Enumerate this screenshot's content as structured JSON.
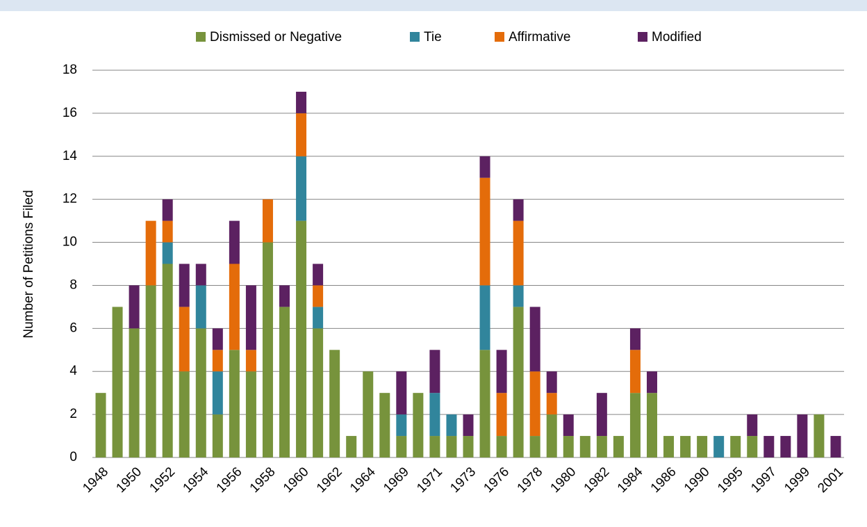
{
  "chart_data": {
    "type": "stacked_bar",
    "y_label": "Number of Petitions Filed",
    "categories": [
      "1948",
      null,
      "1950",
      null,
      "1952",
      null,
      "1954",
      null,
      "1956",
      null,
      "1958",
      null,
      "1960",
      null,
      "1962",
      null,
      "1964",
      null,
      "1969",
      null,
      "1971",
      null,
      "1973",
      null,
      "1976",
      null,
      "1978",
      null,
      "1980",
      null,
      "1982",
      null,
      "1984",
      null,
      "1986",
      null,
      "1990",
      null,
      "1995",
      null,
      "1997",
      null,
      "1999",
      null,
      "2001"
    ],
    "series": [
      {
        "name": "Dismissed or Negative",
        "color": "#77933c",
        "values": [
          3,
          7,
          6,
          8,
          9,
          4,
          6,
          2,
          5,
          4,
          10,
          7,
          11,
          6,
          5,
          1,
          4,
          3,
          1,
          3,
          1,
          1,
          1,
          5,
          1,
          7,
          1,
          2,
          1,
          1,
          1,
          1,
          3,
          3,
          1,
          1,
          1,
          0,
          1,
          1,
          0,
          0,
          0,
          2,
          0
        ]
      },
      {
        "name": "Tie",
        "color": "#31859c",
        "values": [
          0,
          0,
          0,
          0,
          1,
          0,
          2,
          2,
          0,
          0,
          0,
          0,
          3,
          1,
          0,
          0,
          0,
          0,
          1,
          0,
          2,
          1,
          0,
          3,
          0,
          1,
          0,
          0,
          0,
          0,
          0,
          0,
          0,
          0,
          0,
          0,
          0,
          1,
          0,
          0,
          0,
          0,
          0,
          0,
          0
        ]
      },
      {
        "name": "Affirmative",
        "color": "#e46c0a",
        "values": [
          0,
          0,
          0,
          3,
          1,
          3,
          0,
          1,
          4,
          1,
          2,
          0,
          2,
          1,
          0,
          0,
          0,
          0,
          0,
          0,
          0,
          0,
          0,
          5,
          2,
          3,
          3,
          1,
          0,
          0,
          0,
          0,
          2,
          0,
          0,
          0,
          0,
          0,
          0,
          0,
          0,
          0,
          0,
          0,
          0
        ]
      },
      {
        "name": "Modified",
        "color": "#5c2161",
        "values": [
          0,
          0,
          2,
          0,
          1,
          2,
          1,
          1,
          2,
          3,
          0,
          1,
          1,
          1,
          0,
          0,
          0,
          0,
          2,
          0,
          2,
          0,
          1,
          1,
          2,
          1,
          3,
          1,
          1,
          0,
          2,
          0,
          1,
          1,
          0,
          0,
          0,
          0,
          0,
          1,
          1,
          1,
          2,
          0,
          1
        ]
      }
    ],
    "ylim": [
      0,
      18
    ],
    "yticks": [
      0,
      2,
      4,
      6,
      8,
      10,
      12,
      14,
      16,
      18
    ],
    "grid": true,
    "legend": "top"
  }
}
